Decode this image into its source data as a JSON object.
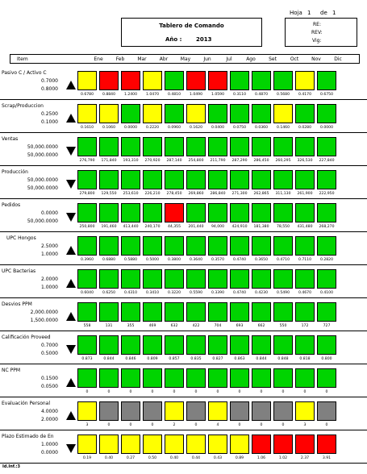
{
  "header": {
    "hoja_label": "Hoja",
    "hoja_num": "1",
    "de_label": "de",
    "hoja_total": "1",
    "title": "Tablero de Comando",
    "year_label": "Año :",
    "year": "2013",
    "re_label": "RE:",
    "rev_label": "REV:",
    "vig_label": "Vig:"
  },
  "columns": {
    "item": "Item",
    "months": [
      "Ene",
      "Feb",
      "Mar",
      "Abr",
      "May",
      "Jun",
      "Jul",
      "Ago",
      "Set",
      "Oct",
      "Nov",
      "Dic"
    ]
  },
  "colors": {
    "G": "#00d400",
    "R": "#ff0000",
    "Y": "#ffff00",
    "X": "#808080"
  },
  "rows": [
    {
      "name": "Pasivo C / Activo C",
      "targets": [
        "0.7000",
        "0.8000"
      ],
      "arrow": "up",
      "status": "YRRYGRRGGGYG",
      "values": [
        "0.6780",
        "0.8840",
        "1.2400",
        "1.0470",
        "0.4810",
        "1.0490",
        "1.0590",
        "0.3110",
        "0.4870",
        "0.5680",
        "0.4170",
        "0.6750"
      ]
    },
    {
      "name": "Scrap/Produccion",
      "targets": [
        "0.2500",
        "0.1000"
      ],
      "arrow": "up",
      "status": "YYGYGYGGGYGG",
      "values": [
        "0.1610",
        "0.1060",
        "0.0000",
        "0.2220",
        "0.0960",
        "0.1620",
        "0.0400",
        "0.0750",
        "0.0360",
        "0.1460",
        "0.0280",
        "0.0000"
      ]
    },
    {
      "name": "Ventas",
      "targets": [
        "50,000.0000",
        "50,000.0000"
      ],
      "arrow": "down",
      "status": "GGGGGGGGGGGG",
      "values": [
        "276,790",
        "171,840",
        "193,310",
        "270,920",
        "287,140",
        "254,800",
        "211,790",
        "287,290",
        "286,450",
        "260,295",
        "326,530",
        "227,840"
      ]
    },
    {
      "name": "Producción",
      "targets": [
        "50,000.0000",
        "50,000.0000"
      ],
      "arrow": "down",
      "status": "GGGGGGGGGGGG",
      "values": [
        "279,800",
        "129,550",
        "253,610",
        "226,210",
        "278,450",
        "269,860",
        "286,840",
        "271,300",
        "262,865",
        "311,130",
        "261,900",
        "222,950"
      ]
    },
    {
      "name": "Pedidos",
      "targets": [
        "0.0000",
        "50,000.0000"
      ],
      "arrow": "down",
      "status": "GGGGRGGGGGGG",
      "values": [
        "250,800",
        "191,460",
        "413,440",
        "240,170",
        "44,355",
        "201,440",
        "94,000",
        "424,910",
        "181,380",
        "78,550",
        "431,480",
        "268,270"
      ]
    },
    {
      "name": "UPC Hongos",
      "targets": [
        "2.5000",
        "1.0000"
      ],
      "arrow": "up",
      "status": "GGGGGGGGGGGG",
      "values": [
        "0.3960",
        "0.6880",
        "0.5880",
        "0.5000",
        "0.3800",
        "0.3640",
        "0.3570",
        "0.4740",
        "0.3650",
        "0.4710",
        "0.7110",
        "0.2820"
      ]
    },
    {
      "name": "UPC Bacterias",
      "targets": [
        "2.0000",
        "1.0000"
      ],
      "arrow": "up",
      "status": "GGGGGGGGGGGG",
      "values": [
        "0.6040",
        "0.6250",
        "0.4310",
        "0.3410",
        "0.3220",
        "0.5590",
        "0.3390",
        "0.4740",
        "0.4230",
        "0.5490",
        "0.4670",
        "0.4100"
      ]
    },
    {
      "name": "Desvios PPM",
      "targets": [
        "2,000.0000",
        "1,500.0000"
      ],
      "arrow": "up",
      "status": "GGGGGGGGGGGG",
      "values": [
        "558",
        "131",
        "355",
        "469",
        "632",
        "422",
        "704",
        "693",
        "662",
        "550",
        "172",
        "727"
      ]
    },
    {
      "name": "Calificación Proveed",
      "targets": [
        "0.7000",
        "0.5000"
      ],
      "arrow": "down",
      "status": "GGGGGGGGGGGG",
      "values": [
        "0.873",
        "0.844",
        "0.846",
        "0.809",
        "0.857",
        "0.835",
        "0.827",
        "0.863",
        "0.844",
        "0.848",
        "0.818",
        "0.800"
      ]
    },
    {
      "name": "NC PPM",
      "targets": [
        "0.1500",
        "0.0500"
      ],
      "arrow": "up",
      "status": "GGGGGGGGGGGG",
      "values": [
        "0",
        "0",
        "0",
        "0",
        "0",
        "0",
        "0",
        "0",
        "0",
        "0",
        "0",
        "0"
      ]
    },
    {
      "name": "Evaluación Personal",
      "targets": [
        "4.0000",
        "2.0000"
      ],
      "arrow": "up",
      "status": "YXXXYXYXXXYX",
      "values": [
        "3",
        "0",
        "0",
        "0",
        "2",
        "0",
        "4",
        "0",
        "0",
        "0",
        "3",
        "0"
      ]
    },
    {
      "name": "Plazo Estimado de En",
      "targets": [
        "1.0000",
        "0.0000"
      ],
      "arrow": "down",
      "status": "YYYYYYYYRRRR",
      "values": [
        "0.19",
        "0.40",
        "0.27",
        "0.50",
        "0.40",
        "0.44",
        "0.43",
        "0.89",
        "1.06",
        "1.02",
        "2.37",
        "3.91"
      ]
    }
  ],
  "footer": "Id.Inf.:3"
}
